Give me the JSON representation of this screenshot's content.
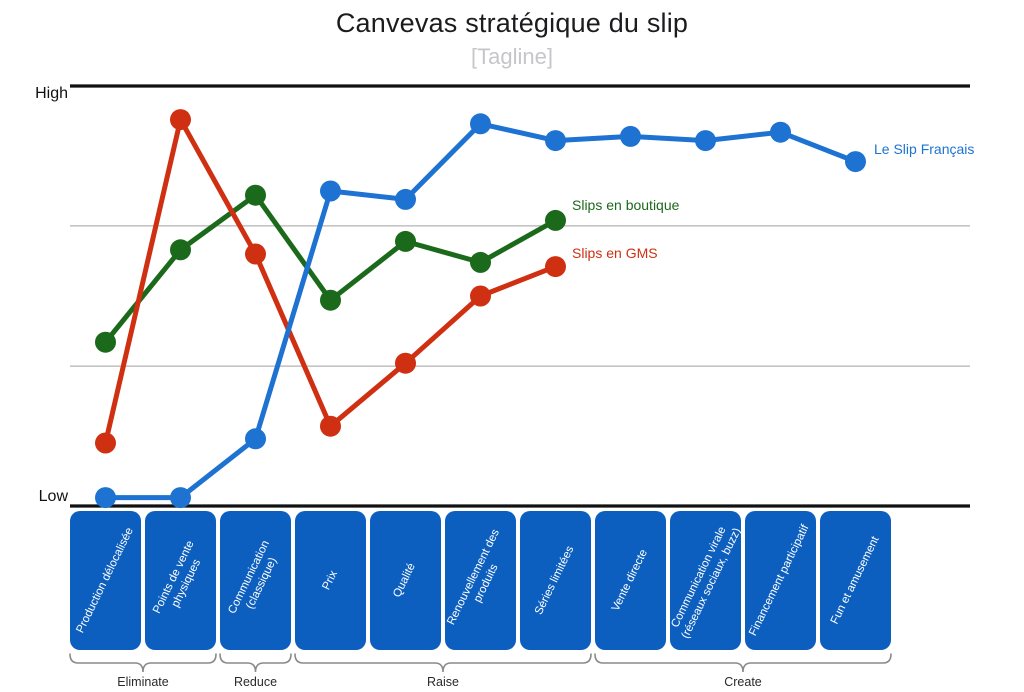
{
  "chart_data": {
    "type": "line",
    "title": "Canvevas stratégique du slip",
    "subtitle": "[Tagline]",
    "y_axis": {
      "high_label": "High",
      "low_label": "Low",
      "min": 0,
      "max": 100,
      "gridlines": [
        33.3,
        66.7
      ]
    },
    "categories": [
      "Production délocalisée",
      "Points de vente\nphysiques",
      "Communication\n(classique)",
      "Prix",
      "Qualité",
      "Renouvellement des\nproduits",
      "Séries limitées",
      "Vente directe",
      "Communication virale\n(réseaux sociaux, buzz)",
      "Financement participatif",
      "Fun et amusement"
    ],
    "series": [
      {
        "name": "Le Slip Français",
        "color": "#1d72d2",
        "values": [
          2,
          2,
          16,
          75,
          73,
          91,
          87,
          88,
          87,
          89,
          82
        ]
      },
      {
        "name": "Slips en boutique",
        "color": "#1b6a1b",
        "values": [
          39,
          61,
          74,
          49,
          63,
          58,
          68,
          null,
          null,
          null,
          null
        ]
      },
      {
        "name": "Slips en GMS",
        "color": "#cf3012",
        "values": [
          15,
          92,
          60,
          19,
          34,
          50,
          57,
          null,
          null,
          null,
          null
        ]
      }
    ],
    "groups": [
      {
        "label": "Eliminate",
        "from": 0,
        "to": 1
      },
      {
        "label": "Reduce",
        "from": 2,
        "to": 2
      },
      {
        "label": "Raise",
        "from": 3,
        "to": 6
      },
      {
        "label": "Create",
        "from": 7,
        "to": 10
      }
    ],
    "colors": {
      "category_box": "#0d5fbf",
      "box_text": "#ffffff",
      "grid": "#b3b3b3",
      "axis": "#111111",
      "brace": "#8a8a8a",
      "group_label": "#2a2a2a"
    },
    "legend_position": "end-of-line"
  }
}
